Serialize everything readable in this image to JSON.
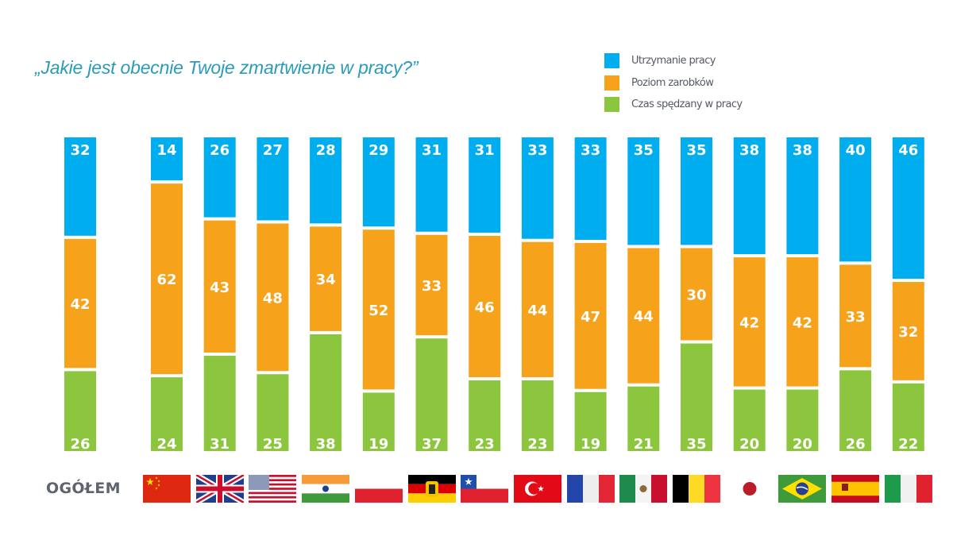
{
  "title": "„Jakie jest obecnie Twoje zmartwienie w pracy?”",
  "overall_label": "OGÓŁEM",
  "colors": {
    "job_security": "#00aeef",
    "salary": "#f7a21b",
    "time_at_work": "#8cc63e",
    "label_text": "#ffffff",
    "title": "#2a9bb8"
  },
  "legend": [
    {
      "label": "Utrzymanie pracy",
      "color": "#00aeef"
    },
    {
      "label": "Poziom zarobków",
      "color": "#f7a21b"
    },
    {
      "label": "Czas spędzany w pracy",
      "color": "#8cc63e"
    }
  ],
  "flags": [
    {
      "country": "China",
      "icon": "china-flag-icon"
    },
    {
      "country": "United Kingdom",
      "icon": "uk-flag-icon"
    },
    {
      "country": "United States",
      "icon": "usa-flag-icon"
    },
    {
      "country": "India",
      "icon": "india-flag-icon"
    },
    {
      "country": "Poland",
      "icon": "poland-flag-icon"
    },
    {
      "country": "Germany",
      "icon": "germany-flag-icon"
    },
    {
      "country": "Chile",
      "icon": "chile-flag-icon"
    },
    {
      "country": "Turkey",
      "icon": "turkey-flag-icon"
    },
    {
      "country": "France",
      "icon": "france-flag-icon"
    },
    {
      "country": "Mexico",
      "icon": "mexico-flag-icon"
    },
    {
      "country": "Belgium",
      "icon": "belgium-flag-icon"
    },
    {
      "country": "Japan",
      "icon": "japan-flag-icon"
    },
    {
      "country": "Brazil",
      "icon": "brazil-flag-icon"
    },
    {
      "country": "Spain",
      "icon": "spain-flag-icon"
    },
    {
      "country": "Italy",
      "icon": "italy-flag-icon"
    }
  ],
  "chart_data": {
    "type": "bar",
    "stacked": true,
    "percent_stacked": true,
    "title": "„Jakie jest obecnie Twoje zmartwienie w pracy?”",
    "xlabel": "",
    "ylabel": "",
    "legend_position": "top-right",
    "grid": false,
    "categories": [
      "OGÓŁEM",
      "Chiny",
      "Wielka Brytania",
      "USA",
      "Indie",
      "Polska",
      "Niemcy",
      "Chile",
      "Turcja",
      "Francja",
      "Meksyk",
      "Belgia",
      "Japonia",
      "Brazylia",
      "Hiszpania",
      "Włochy"
    ],
    "series": [
      {
        "name": "Utrzymanie pracy",
        "color": "#00aeef",
        "values": [
          32,
          14,
          26,
          27,
          28,
          29,
          31,
          31,
          33,
          33,
          35,
          35,
          38,
          38,
          40,
          46
        ]
      },
      {
        "name": "Poziom zarobków",
        "color": "#f7a21b",
        "values": [
          42,
          62,
          43,
          48,
          34,
          52,
          33,
          46,
          44,
          47,
          44,
          30,
          42,
          42,
          33,
          32
        ]
      },
      {
        "name": "Czas spędzany w pracy",
        "color": "#8cc63e",
        "values": [
          26,
          24,
          31,
          25,
          38,
          19,
          37,
          23,
          23,
          19,
          21,
          35,
          20,
          20,
          26,
          22
        ]
      }
    ]
  }
}
